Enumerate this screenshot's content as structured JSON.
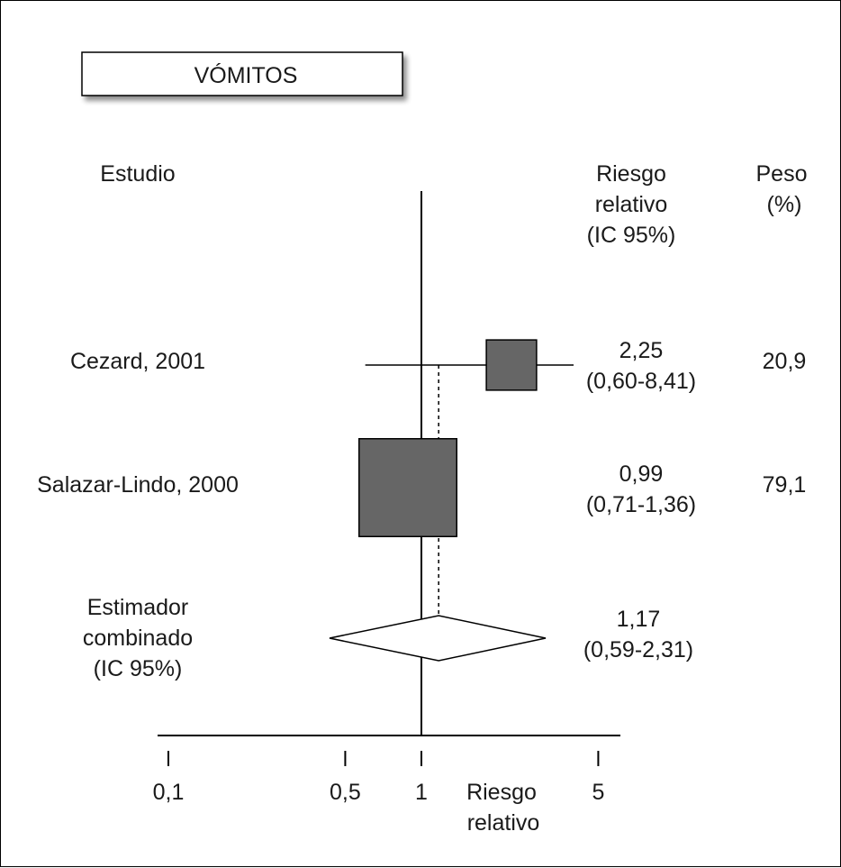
{
  "title": "VÓMITOS",
  "headers": {
    "study": "Estudio",
    "rr_lines": [
      "Riesgo",
      "relativo",
      "(IC 95%)"
    ],
    "weight_lines": [
      "Peso",
      "(%)"
    ]
  },
  "chart_data": {
    "type": "forest",
    "title": "VÓMITOS",
    "x_scale": "log",
    "x_axis": {
      "ticks": [
        0.1,
        0.5,
        1,
        5
      ],
      "tick_labels": [
        "0,1",
        "0,5",
        "1",
        "5"
      ],
      "label_lines": [
        "Riesgo",
        "relativo"
      ]
    },
    "no_effect_line": 1,
    "pooled_reference_line": 1.17,
    "studies": [
      {
        "label_lines": [
          "Cezard, 2001"
        ],
        "rr": 2.25,
        "ci": [
          0.6,
          8.41
        ],
        "rr_text": "2,25",
        "ci_text": "(0,60-8,41)",
        "weight": 20.9,
        "weight_text": "20,9"
      },
      {
        "label_lines": [
          "Salazar-Lindo, 2000"
        ],
        "rr": 0.99,
        "ci": [
          0.71,
          1.36
        ],
        "rr_text": "0,99",
        "ci_text": "(0,71-1,36)",
        "weight": 79.1,
        "weight_text": "79,1"
      }
    ],
    "pooled": {
      "label_lines": [
        "Estimador",
        "combinado",
        "(IC 95%)"
      ],
      "rr": 1.17,
      "ci": [
        0.59,
        2.31
      ],
      "rr_text": "1,17",
      "ci_text": "(0,59-2,31)"
    },
    "colors": {
      "square": "#666666",
      "line": "#000000"
    }
  }
}
